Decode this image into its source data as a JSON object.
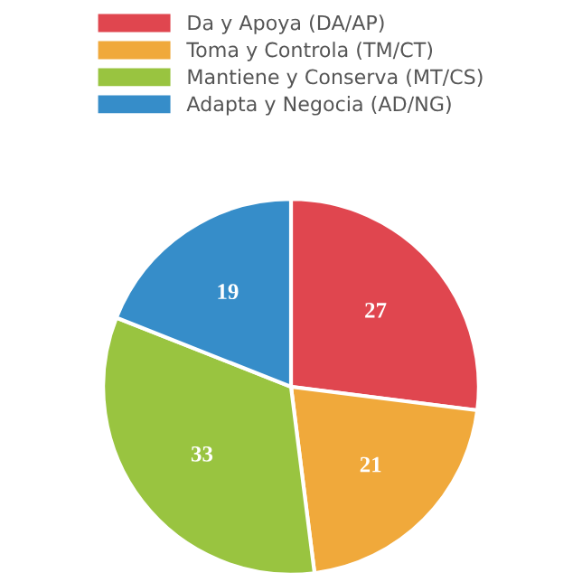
{
  "chart_data": {
    "type": "pie",
    "categories": [
      "Da y Apoya (DA/AP)",
      "Toma y Controla (TM/CT)",
      "Mantiene y Conserva (MT/CS)",
      "Adapta y Negocia (AD/NG)"
    ],
    "values": [
      27,
      21,
      33,
      19
    ],
    "colors": [
      "#e0464f",
      "#f0a93b",
      "#99c440",
      "#368dc9"
    ],
    "data_labels": true,
    "legend": "top"
  }
}
